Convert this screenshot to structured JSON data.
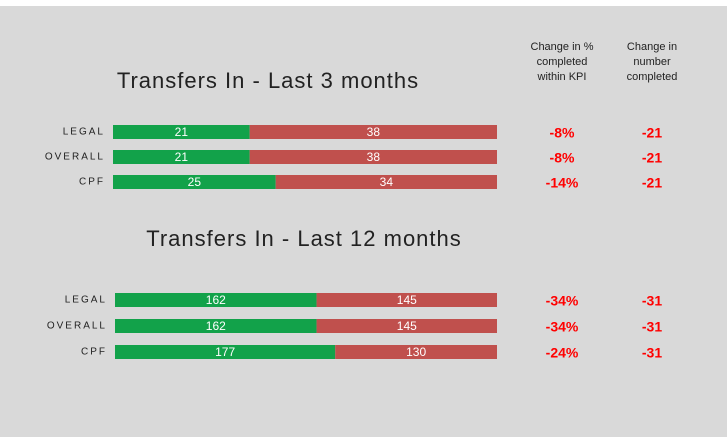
{
  "column_headers": [
    [
      "Change in %",
      "completed",
      "within KPI"
    ],
    [
      "Change in",
      "number",
      "completed"
    ]
  ],
  "chart_data": [
    {
      "type": "stacked_hbar",
      "title": "Transfers In - Last 3 months",
      "categories": [
        "LEGAL",
        "OVERALL",
        "CPF"
      ],
      "series": [
        {
          "color": "#12a24a",
          "values": [
            21,
            21,
            25
          ]
        },
        {
          "color": "#c0504d",
          "values": [
            38,
            38,
            34
          ]
        }
      ],
      "change_pct": {
        "values": [
          -8,
          -8,
          -14
        ],
        "value_labels": [
          "-8%",
          "-8%",
          "-14%"
        ]
      },
      "change_number": {
        "values": [
          -21,
          -21,
          -21
        ]
      }
    },
    {
      "type": "stacked_hbar",
      "title": "Transfers In - Last 12 months",
      "categories": [
        "LEGAL",
        "OVERALL",
        "CPF"
      ],
      "series": [
        {
          "color": "#12a24a",
          "values": [
            162,
            162,
            177
          ]
        },
        {
          "color": "#c0504d",
          "values": [
            145,
            145,
            130
          ]
        }
      ],
      "change_pct": {
        "values": [
          -34,
          -34,
          -24
        ],
        "value_labels": [
          "-34%",
          "-34%",
          "-24%"
        ]
      },
      "change_number": {
        "values": [
          -31,
          -31,
          -31
        ]
      }
    }
  ]
}
